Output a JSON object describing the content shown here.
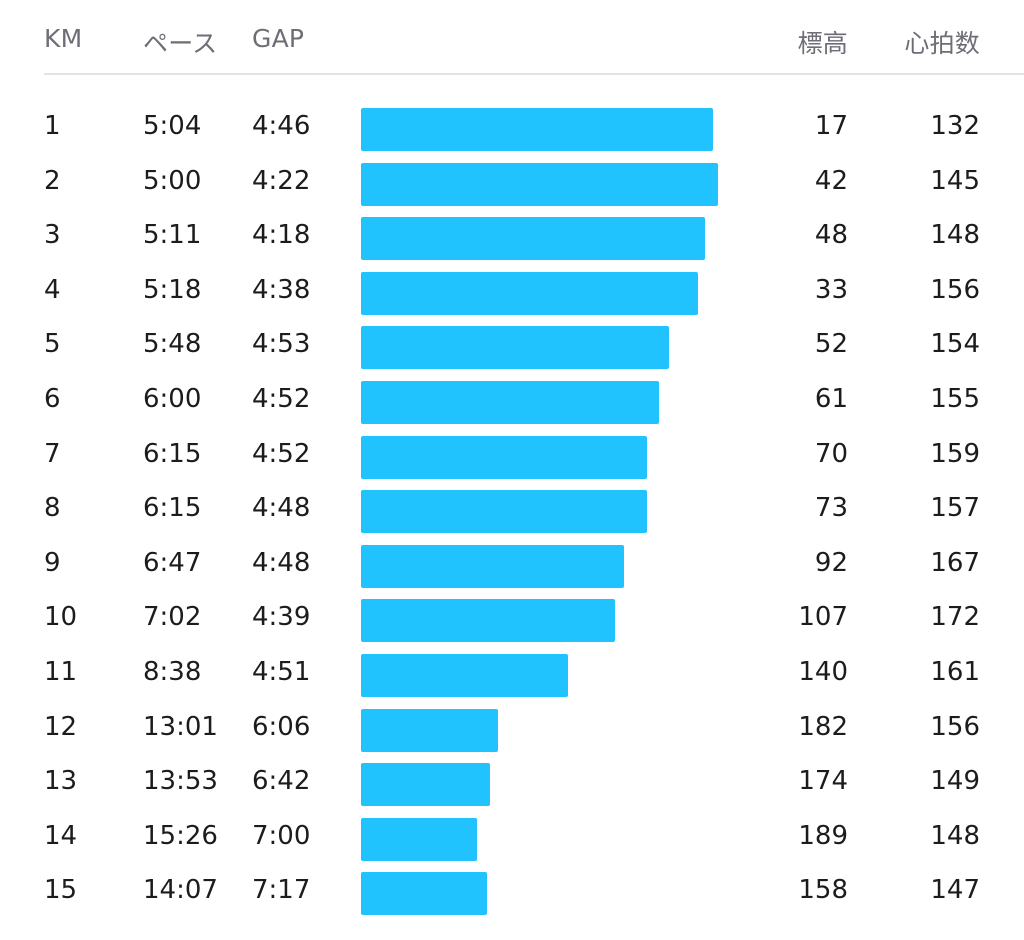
{
  "header": {
    "km": "KM",
    "pace": "ペース",
    "gap": "GAP",
    "elevation": "標高",
    "heart_rate": "心拍数"
  },
  "colors": {
    "bar": "#20c3fd",
    "header_text": "#6e6e76",
    "divider": "#e3e3e6"
  },
  "chart_data": {
    "type": "bar",
    "orientation": "horizontal",
    "categories": [
      "1",
      "2",
      "3",
      "4",
      "5",
      "6",
      "7",
      "8",
      "9",
      "10",
      "11",
      "12",
      "13",
      "14",
      "15"
    ],
    "pace": [
      "5:04",
      "5:00",
      "5:11",
      "5:18",
      "5:48",
      "6:00",
      "6:15",
      "6:15",
      "6:47",
      "7:02",
      "8:38",
      "13:01",
      "13:53",
      "15:26",
      "14:07"
    ],
    "gap": [
      "4:46",
      "4:22",
      "4:18",
      "4:38",
      "4:53",
      "4:52",
      "4:52",
      "4:48",
      "4:48",
      "4:39",
      "4:51",
      "6:06",
      "6:42",
      "7:00",
      "7:17"
    ],
    "elevation": [
      "17",
      "42",
      "48",
      "33",
      "52",
      "61",
      "70",
      "73",
      "92",
      "107",
      "140",
      "182",
      "174",
      "189",
      "158"
    ],
    "heart_rate": [
      "132",
      "145",
      "148",
      "156",
      "154",
      "155",
      "159",
      "157",
      "167",
      "172",
      "161",
      "156",
      "149",
      "148",
      "147"
    ]
  }
}
